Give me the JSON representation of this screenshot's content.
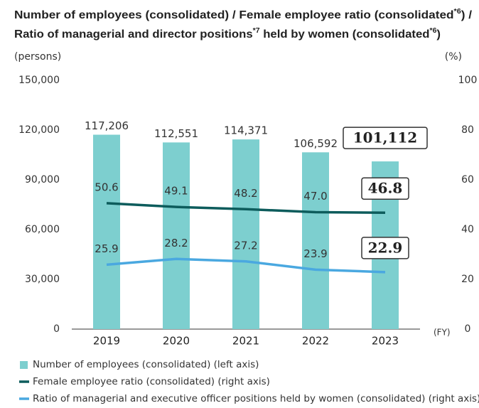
{
  "chart_data": {
    "type": "bar_line",
    "title": [
      [
        {
          "text": "Number of employees (consolidated) / Female employee ratio (consolidated"
        },
        {
          "text": "*6",
          "sup": true
        },
        {
          "text": ") /"
        }
      ],
      [
        {
          "text": "Ratio of managerial and director positions"
        },
        {
          "text": "*7",
          "sup": true
        },
        {
          "text": " held by women (consolidated"
        },
        {
          "text": "*6",
          "sup": true
        },
        {
          "text": ")"
        }
      ]
    ],
    "y_label": "(persons)",
    "y2_label": "(%)",
    "x_label": "(FY)",
    "categories": [
      "2019",
      "2020",
      "2021",
      "2022",
      "2023"
    ],
    "ylim": [
      0,
      150000
    ],
    "yticks": [
      0,
      {
        "value": 30000,
        "label": "30,000"
      },
      {
        "value": 60000,
        "label": "60,000"
      },
      {
        "value": 90000,
        "label": "90,000"
      },
      {
        "value": 120000,
        "label": "120,000"
      },
      {
        "value": 150000,
        "label": "150,000"
      }
    ],
    "y2lim": [
      0,
      100
    ],
    "y2ticks": [
      0,
      20,
      40,
      60,
      80,
      100
    ],
    "highlight_index": 4,
    "series": [
      {
        "name": "Number of employees (consolidated) (left axis)",
        "kind": "bar",
        "color": "#7dcfcf",
        "values": [
          117206,
          112551,
          114371,
          106592,
          101112
        ],
        "value_labels": [
          "117,206",
          "112,551",
          "114,371",
          "106,592",
          "101,112"
        ]
      },
      {
        "name": "Female employee ratio (consolidated) (right axis)",
        "kind": "line",
        "axis": "y2",
        "color": "#0d5c5c",
        "values": [
          50.6,
          49.1,
          48.2,
          47.0,
          46.8
        ],
        "value_labels": [
          "50.6",
          "49.1",
          "48.2",
          "47.0",
          "46.8"
        ]
      },
      {
        "name": "Ratio of managerial and executive officer positions held by women (consolidated) (right axis)",
        "kind": "line",
        "axis": "y2",
        "color": "#4aa8e0",
        "values": [
          25.9,
          28.2,
          27.2,
          23.9,
          22.9
        ],
        "value_labels": [
          "25.9",
          "28.2",
          "27.2",
          "23.9",
          "22.9"
        ]
      }
    ]
  }
}
